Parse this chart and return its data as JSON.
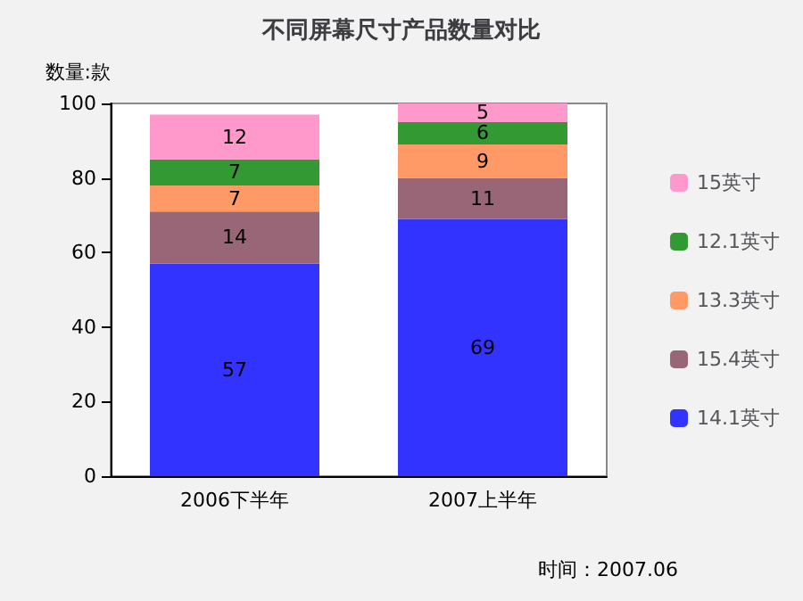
{
  "chart_data": {
    "type": "bar",
    "stacked": true,
    "title": "不同屏幕尺寸产品数量对比",
    "ylabel": "数量:款",
    "categories": [
      "2006下半年",
      "2007上半年"
    ],
    "series": [
      {
        "name": "14.1英寸",
        "color": "#3333ff",
        "values": [
          57,
          69
        ]
      },
      {
        "name": "15.4英寸",
        "color": "#996677",
        "values": [
          14,
          11
        ]
      },
      {
        "name": "13.3英寸",
        "color": "#ff9966",
        "values": [
          7,
          9
        ]
      },
      {
        "name": "12.1英寸",
        "color": "#339933",
        "values": [
          7,
          6
        ]
      },
      {
        "name": "15英寸",
        "color": "#ff99cc",
        "values": [
          12,
          5
        ]
      }
    ],
    "ylim": [
      0,
      100
    ],
    "yticks": [
      0,
      20,
      40,
      60,
      80,
      100
    ],
    "grid": false,
    "legend": "right",
    "data_labels": true,
    "annotations": [
      "时间：2007.06"
    ]
  }
}
